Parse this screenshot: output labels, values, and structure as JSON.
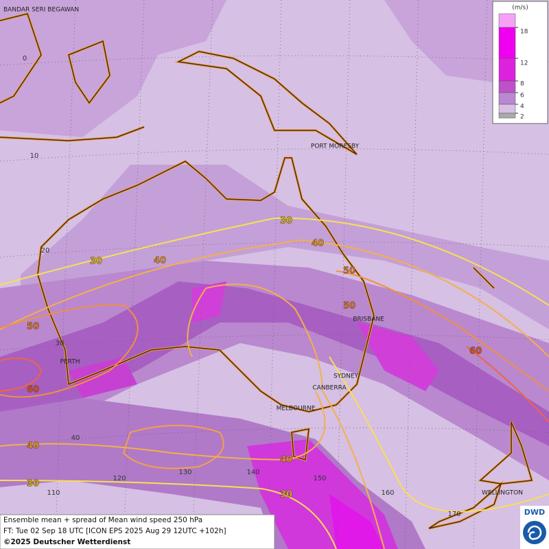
{
  "map": {
    "cities": [
      "BANDAR SERI BEGAWAN",
      "PORT MORESBY",
      "BRISBANE",
      "PERTH",
      "SYDNEY",
      "CANBERRA",
      "MELBOURNE",
      "WELLINGTON"
    ],
    "latitude_labels": [
      0,
      10,
      20,
      30,
      40
    ],
    "longitude_labels": [
      110,
      120,
      130,
      140,
      150,
      160,
      170
    ],
    "contour_labels": [
      30,
      40,
      30,
      40,
      50,
      50,
      50,
      60,
      60,
      40,
      40,
      30,
      30
    ]
  },
  "legend": {
    "unit": "(m/s)",
    "ticks": [
      18,
      12,
      8,
      6,
      4,
      2
    ]
  },
  "footer": {
    "lines": [
      "Ensemble mean + spread of Mean wind speed 250 hPa",
      "FT: Tue 02 Sep 18 UTC [ICON EPS 2025 Aug 29 12UTC +102h]",
      "©2025 Deutscher Wetterdienst"
    ]
  },
  "logo": {
    "text": "DWD"
  }
}
